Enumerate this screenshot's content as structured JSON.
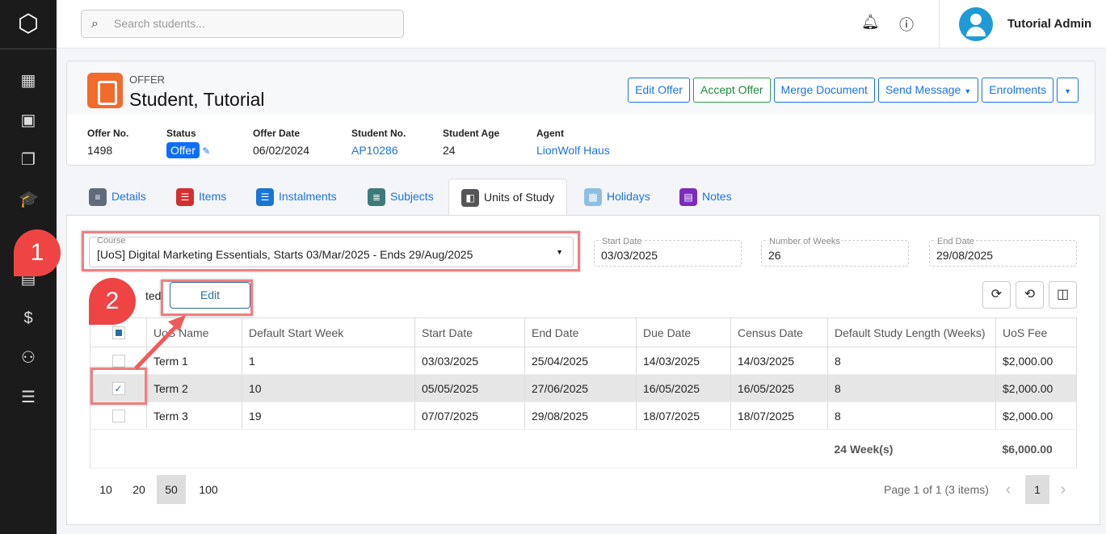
{
  "sidebar": {
    "items": [
      "dashboard-icon",
      "students-icon",
      "offers-icon",
      "courses-icon",
      "calendar-icon",
      "fees-icon",
      "agents-icon",
      "settings-icon"
    ]
  },
  "topbar": {
    "search_placeholder": "Search students...",
    "user_name": "Tutorial Admin"
  },
  "offer": {
    "label": "OFFER",
    "name": "Student, Tutorial",
    "buttons": {
      "edit": "Edit Offer",
      "accept": "Accept Offer",
      "merge": "Merge Document",
      "send": "Send Message",
      "enrolments": "Enrolments"
    },
    "meta": {
      "offer_no_label": "Offer No.",
      "offer_no": "1498",
      "status_label": "Status",
      "status": "Offer",
      "offer_date_label": "Offer Date",
      "offer_date": "06/02/2024",
      "student_no_label": "Student No.",
      "student_no": "AP10286",
      "age_label": "Student Age",
      "age": "24",
      "agent_label": "Agent",
      "agent": "LionWolf Haus"
    }
  },
  "tabs": [
    {
      "label": "Details",
      "color": "#5f6b7a"
    },
    {
      "label": "Items",
      "color": "#d32f2f"
    },
    {
      "label": "Instalments",
      "color": "#1976d2"
    },
    {
      "label": "Subjects",
      "color": "#3d7a7a"
    },
    {
      "label": "Units of Study",
      "color": "#555"
    },
    {
      "label": "Holidays",
      "color": "#8fbfe0"
    },
    {
      "label": "Notes",
      "color": "#7b2cbf"
    }
  ],
  "active_tab": "Units of Study",
  "form": {
    "course_label": "Course",
    "course_value": "[UoS] Digital Marketing Essentials, Starts 03/Mar/2025 - Ends 29/Aug/2025",
    "start_label": "Start Date",
    "start": "03/03/2025",
    "weeks_label": "Number of Weeks",
    "weeks": "26",
    "end_label": "End Date",
    "end": "29/08/2025"
  },
  "selected_text": "ted",
  "edit_label": "Edit",
  "annotations": [
    "1",
    "2"
  ],
  "table": {
    "headers": [
      "UoS Name",
      "Default Start Week",
      "Start Date",
      "End Date",
      "Due Date",
      "Census Date",
      "Default Study Length (Weeks)",
      "UoS Fee"
    ],
    "rows": [
      [
        "Term 1",
        "1",
        "03/03/2025",
        "25/04/2025",
        "14/03/2025",
        "14/03/2025",
        "8",
        "$2,000.00"
      ],
      [
        "Term 2",
        "10",
        "05/05/2025",
        "27/06/2025",
        "16/05/2025",
        "16/05/2025",
        "8",
        "$2,000.00"
      ],
      [
        "Term 3",
        "19",
        "07/07/2025",
        "29/08/2025",
        "18/07/2025",
        "18/07/2025",
        "8",
        "$2,000.00"
      ]
    ],
    "checked": [
      false,
      true,
      false
    ],
    "total_weeks": "24 Week(s)",
    "total_fee": "$6,000.00"
  },
  "pager": {
    "sizes": [
      "10",
      "20",
      "50",
      "100"
    ],
    "active_size": "50",
    "info": "Page 1 of 1 (3 items)",
    "page": "1"
  }
}
